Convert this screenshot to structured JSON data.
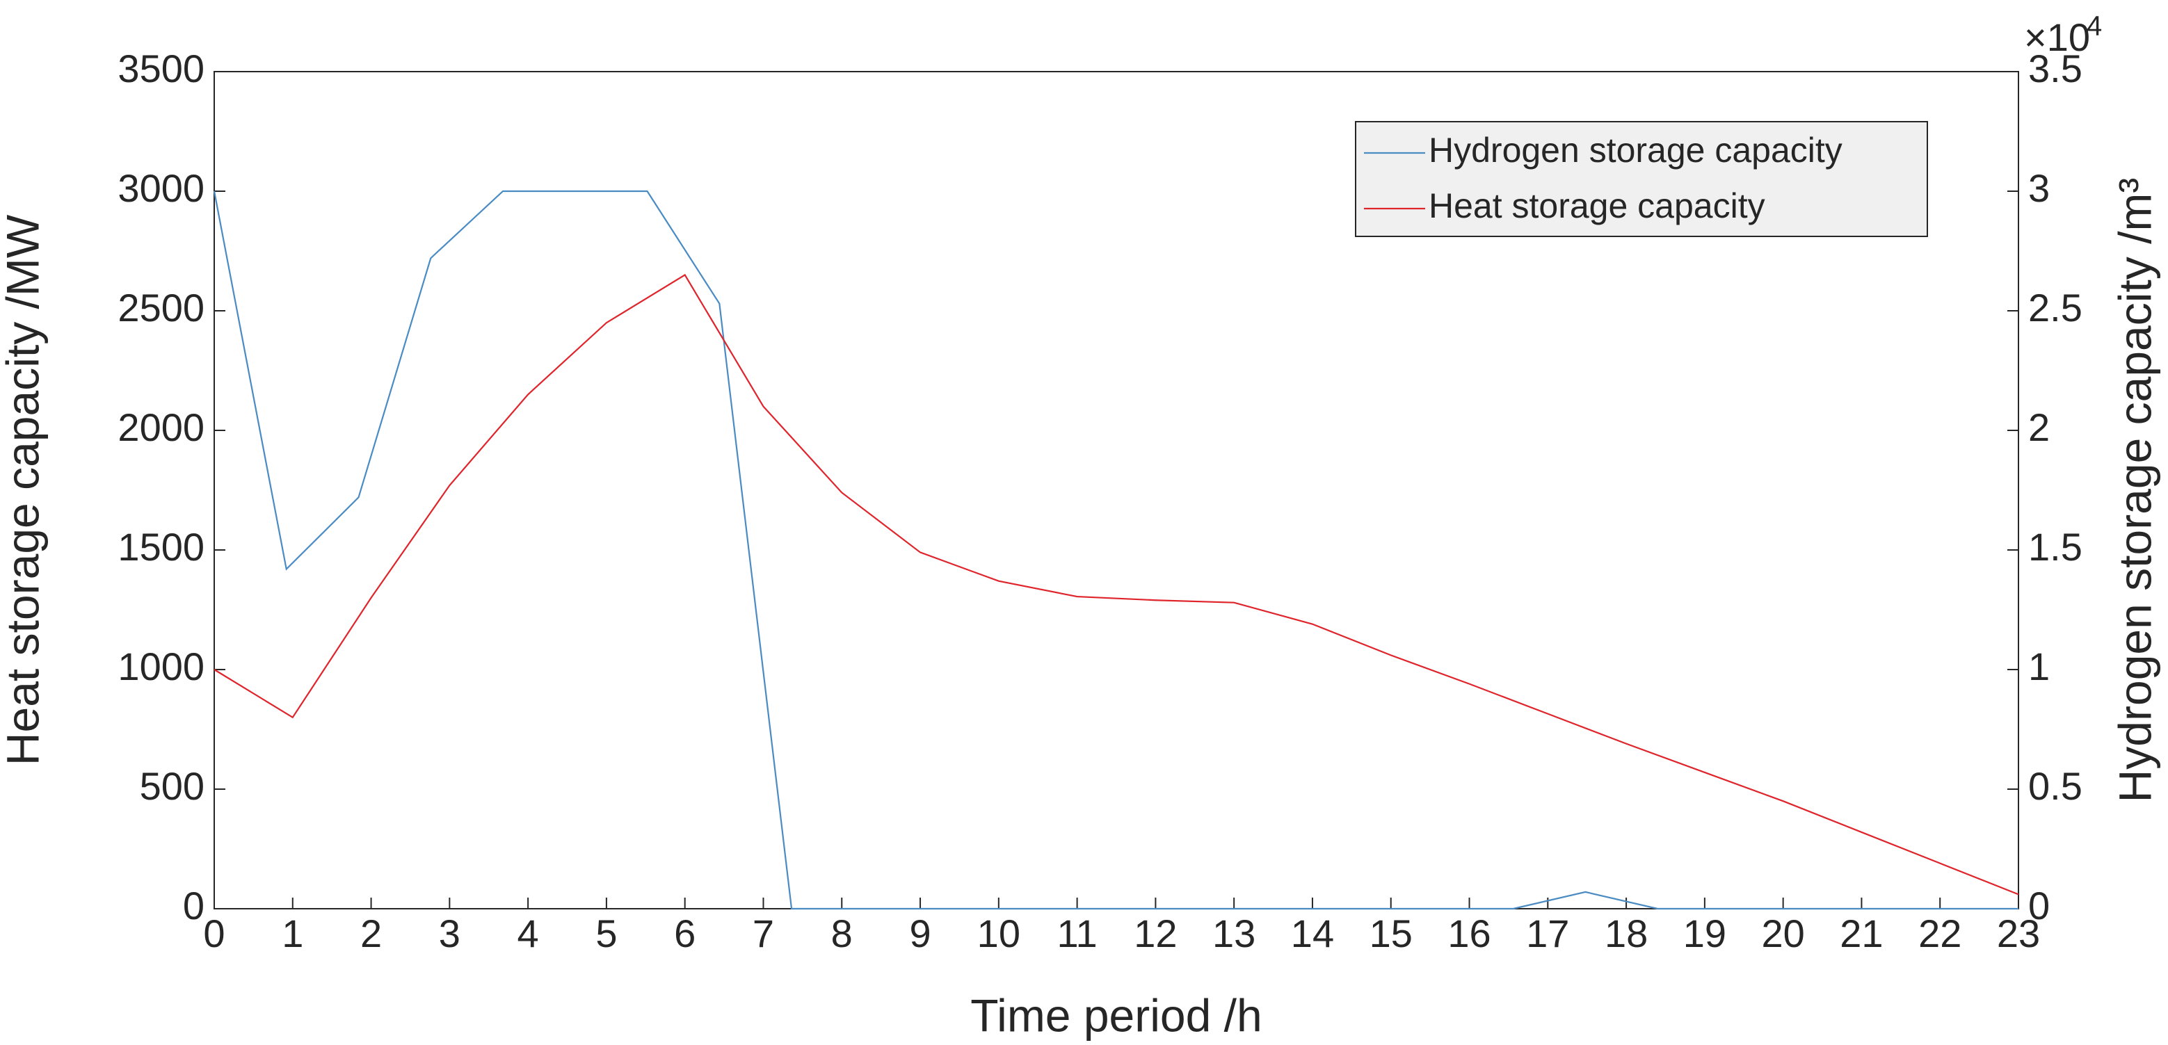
{
  "chart_data": {
    "type": "line",
    "xlabel": "Time period /h",
    "ylabel": "Heat storage capacity /MW",
    "y2label": "Hydrogen storage capacity /m³",
    "y2_multiplier": {
      "base": "×10",
      "exponent": "4"
    },
    "xlim": [
      0,
      23
    ],
    "xticks": [
      0,
      1,
      2,
      3,
      4,
      5,
      6,
      7,
      8,
      9,
      10,
      11,
      12,
      13,
      14,
      15,
      16,
      17,
      18,
      19,
      20,
      21,
      22,
      23
    ],
    "ylim": [
      0,
      3500
    ],
    "yticks": [
      0,
      500,
      1000,
      1500,
      2000,
      2500,
      3000,
      3500
    ],
    "y2lim": [
      0,
      35000
    ],
    "y2ticks": [
      0,
      {
        "value": 5000,
        "label": "0.5"
      },
      {
        "value": 10000,
        "label": "1"
      },
      {
        "value": 15000,
        "label": "1.5"
      },
      {
        "value": 20000,
        "label": "2"
      },
      {
        "value": 25000,
        "label": "2.5"
      },
      {
        "value": 30000,
        "label": "3"
      },
      {
        "value": 35000,
        "label": "3.5"
      }
    ],
    "legend": "upper right",
    "series": [
      {
        "name": "Hydrogen storage capacity",
        "color": "#4a8bc4",
        "axis": "y2",
        "x": [
          0,
          0.92,
          1.84,
          2.76,
          3.68,
          4.6,
          5.52,
          6.44,
          7.36,
          8.28,
          9.2,
          10.12,
          11.04,
          11.96,
          12.88,
          13.8,
          14.72,
          15.64,
          16.56,
          17.48,
          18.4,
          19.32,
          20.24,
          21.16,
          22.08,
          23
        ],
        "values": [
          30000,
          14200,
          17200,
          27200,
          30000,
          30000,
          30000,
          25300,
          0,
          0,
          0,
          0,
          0,
          0,
          0,
          0,
          0,
          0,
          0,
          700,
          0,
          0,
          0,
          0,
          0,
          0
        ]
      },
      {
        "name": "Heat storage capacity",
        "color": "#e0242b",
        "x": [
          0,
          1,
          2,
          3,
          4,
          5,
          6,
          7,
          8,
          9,
          10,
          11,
          12,
          13,
          14,
          15,
          16,
          17,
          18,
          19,
          20,
          21,
          22,
          23
        ],
        "values": [
          1000,
          800,
          1300,
          1770,
          2150,
          2450,
          2650,
          2100,
          1740,
          1490,
          1370,
          1305,
          1290,
          1280,
          1190,
          1060,
          940,
          815,
          690,
          570,
          450,
          320,
          190,
          60
        ]
      }
    ]
  }
}
